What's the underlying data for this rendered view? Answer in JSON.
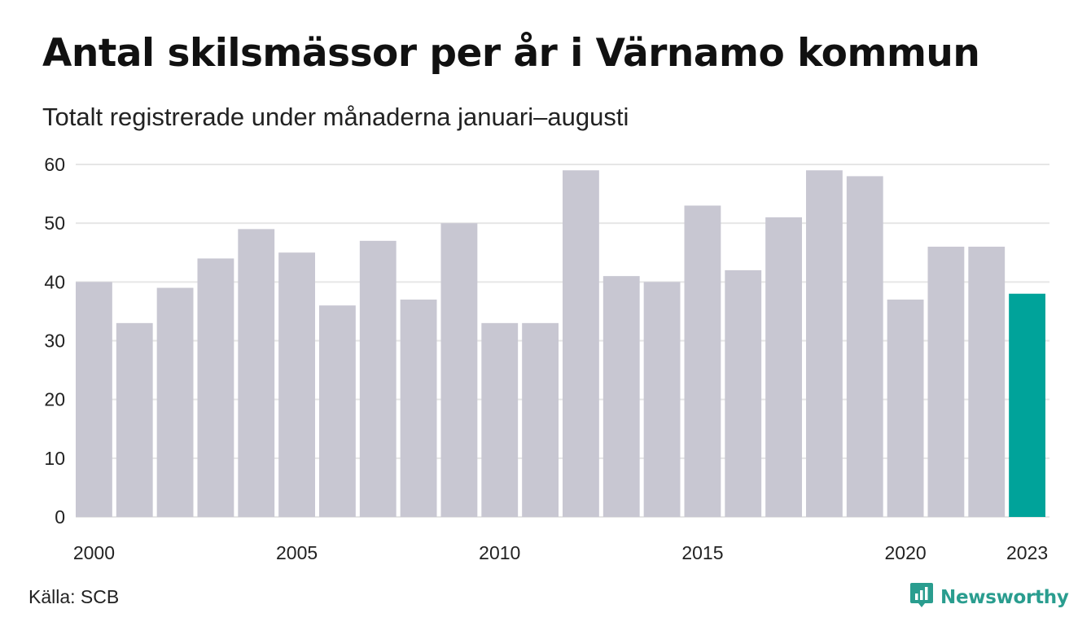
{
  "header": {
    "title": "Antal skilsmässor per år i Värnamo kommun",
    "subtitle": "Totalt registrerade under månaderna januari–augusti"
  },
  "footer": {
    "source": "Källa: SCB",
    "brand": "Newsworthy",
    "brand_icon": "newsworthy-logo-icon",
    "brand_color": "#2a9d8f"
  },
  "colors": {
    "bar_default": "#c8c7d2",
    "bar_highlight": "#00a39a",
    "gridline": "#e6e6e6",
    "axis_text": "#222222"
  },
  "chart_data": {
    "type": "bar",
    "title": "Antal skilsmässor per år i Värnamo kommun",
    "subtitle": "Totalt registrerade under månaderna januari–augusti",
    "xlabel": "",
    "ylabel": "",
    "categories": [
      "2000",
      "2001",
      "2002",
      "2003",
      "2004",
      "2005",
      "2006",
      "2007",
      "2008",
      "2009",
      "2010",
      "2011",
      "2012",
      "2013",
      "2014",
      "2015",
      "2016",
      "2017",
      "2018",
      "2019",
      "2020",
      "2021",
      "2022",
      "2023"
    ],
    "values": [
      40,
      33,
      39,
      44,
      49,
      45,
      36,
      47,
      37,
      50,
      33,
      33,
      59,
      41,
      40,
      53,
      42,
      51,
      59,
      58,
      37,
      46,
      46,
      38
    ],
    "highlight_category": "2023",
    "ylim": [
      0,
      60
    ],
    "yticks": [
      0,
      10,
      20,
      30,
      40,
      50,
      60
    ],
    "xtick_labels": [
      "2000",
      "2005",
      "2010",
      "2015",
      "2020",
      "2023"
    ],
    "grid": "horizontal",
    "legend": "none"
  }
}
